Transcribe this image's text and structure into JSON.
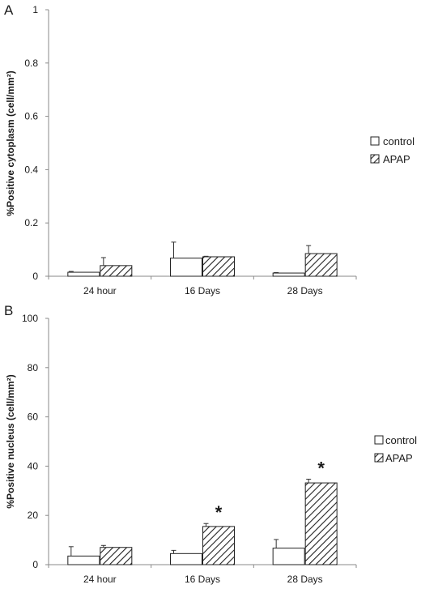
{
  "legend": {
    "control_label": "control",
    "treatment_label": "APAP"
  },
  "chart_data": [
    {
      "type": "bar",
      "panel_label": "A",
      "ylabel": "%Positive cytoplasm (cell/mm²)",
      "xlabel": "",
      "categories": [
        "24 hour",
        "16 Days",
        "28 Days"
      ],
      "ylim": [
        0,
        1
      ],
      "yticks": [
        0,
        0.2,
        0.4,
        0.6,
        0.8,
        1
      ],
      "ytick_labels": [
        "0",
        "0.2",
        "0.4",
        "0.6",
        "0.8",
        "1"
      ],
      "series": [
        {
          "name": "control",
          "fill": "solid-white",
          "values": [
            0.015,
            0.068,
            0.012
          ],
          "errors": [
            0.003,
            0.06,
            0.002
          ]
        },
        {
          "name": "APAP",
          "fill": "diagonal-hatch",
          "values": [
            0.04,
            0.073,
            0.085
          ],
          "errors": [
            0.03,
            0.002,
            0.03
          ]
        }
      ],
      "significance": [],
      "legend_position": "right",
      "grid": false
    },
    {
      "type": "bar",
      "panel_label": "B",
      "ylabel": "%Positive nucleus (cell/mm²)",
      "xlabel": "",
      "categories": [
        "24 hour",
        "16 Days",
        "28 Days"
      ],
      "ylim": [
        0,
        100
      ],
      "yticks": [
        0,
        20,
        40,
        60,
        80,
        100
      ],
      "ytick_labels": [
        "0",
        "20",
        "40",
        "60",
        "80",
        "100"
      ],
      "series": [
        {
          "name": "control",
          "fill": "solid-white",
          "values": [
            3.5,
            4.5,
            6.7
          ],
          "errors": [
            3.8,
            1.3,
            3.5
          ]
        },
        {
          "name": "APAP",
          "fill": "diagonal-hatch",
          "values": [
            7.0,
            15.5,
            33.2
          ],
          "errors": [
            0.8,
            1.2,
            1.5
          ]
        }
      ],
      "significance": [
        {
          "category": "16 Days",
          "series": "APAP",
          "mark": "*"
        },
        {
          "category": "28 Days",
          "series": "APAP",
          "mark": "*"
        }
      ],
      "legend_position": "right",
      "grid": false
    }
  ]
}
